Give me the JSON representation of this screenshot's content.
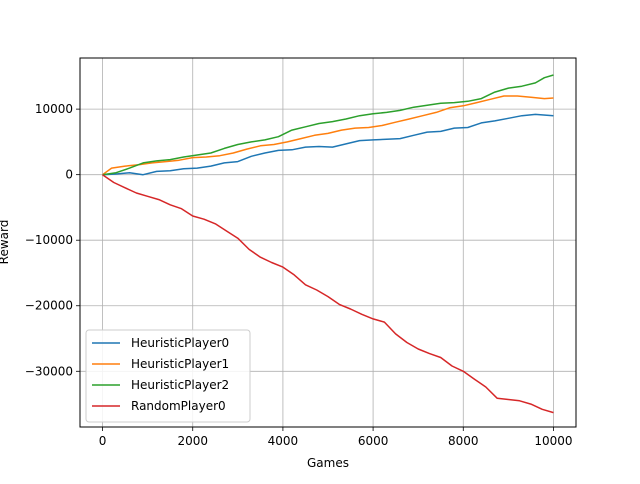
{
  "chart_data": {
    "type": "line",
    "title": "",
    "xlabel": "Games",
    "ylabel": "Reward",
    "xlim": [
      -500,
      10500
    ],
    "ylim": [
      -38500,
      17800
    ],
    "xticks": [
      0,
      2000,
      4000,
      6000,
      8000,
      10000
    ],
    "xtick_labels": [
      "0",
      "2000",
      "4000",
      "6000",
      "8000",
      "10000"
    ],
    "yticks": [
      -30000,
      -20000,
      -10000,
      0,
      10000
    ],
    "ytick_labels": [
      "−30000",
      "−20000",
      "−10000",
      "0",
      "10000"
    ],
    "grid": true,
    "legend_position": "lower-left",
    "series": [
      {
        "name": "HeuristicPlayer0",
        "color": "#1f77b4",
        "x": [
          0,
          300,
          600,
          900,
          1200,
          1500,
          1800,
          2100,
          2400,
          2700,
          3000,
          3300,
          3600,
          3900,
          4200,
          4500,
          4800,
          5100,
          5400,
          5700,
          6000,
          6300,
          6600,
          6900,
          7200,
          7500,
          7800,
          8100,
          8400,
          8700,
          9000,
          9300,
          9600,
          10000
        ],
        "values": [
          0,
          100,
          300,
          0,
          500,
          600,
          900,
          1000,
          1300,
          1800,
          2000,
          2800,
          3300,
          3700,
          3800,
          4200,
          4300,
          4200,
          4700,
          5200,
          5300,
          5400,
          5500,
          6000,
          6500,
          6600,
          7100,
          7200,
          7900,
          8200,
          8600,
          9000,
          9200,
          9000
        ]
      },
      {
        "name": "HeuristicPlayer1",
        "color": "#ff7f0e",
        "x": [
          0,
          200,
          500,
          800,
          1100,
          1400,
          1700,
          2000,
          2300,
          2600,
          2900,
          3200,
          3500,
          3800,
          4100,
          4400,
          4700,
          5000,
          5300,
          5600,
          5900,
          6200,
          6500,
          6800,
          7100,
          7400,
          7700,
          8000,
          8300,
          8600,
          8900,
          9200,
          9500,
          9800,
          10000
        ],
        "values": [
          0,
          1000,
          1300,
          1500,
          1800,
          2000,
          2200,
          2600,
          2700,
          2900,
          3300,
          3900,
          4400,
          4600,
          5000,
          5500,
          6000,
          6300,
          6800,
          7100,
          7200,
          7500,
          8000,
          8500,
          9000,
          9500,
          10200,
          10500,
          11000,
          11500,
          12000,
          12000,
          11800,
          11600,
          11700
        ]
      },
      {
        "name": "HeuristicPlayer2",
        "color": "#2ca02c",
        "x": [
          0,
          300,
          600,
          900,
          1200,
          1500,
          1800,
          2100,
          2400,
          2700,
          3000,
          3300,
          3600,
          3900,
          4200,
          4500,
          4800,
          5100,
          5400,
          5700,
          6000,
          6300,
          6600,
          6900,
          7200,
          7500,
          7800,
          8100,
          8400,
          8700,
          9000,
          9300,
          9600,
          9800,
          10000
        ],
        "values": [
          0,
          300,
          1000,
          1800,
          2100,
          2300,
          2700,
          3000,
          3300,
          4000,
          4600,
          5000,
          5300,
          5800,
          6800,
          7300,
          7800,
          8100,
          8500,
          9000,
          9300,
          9500,
          9800,
          10300,
          10600,
          10900,
          11000,
          11200,
          11600,
          12600,
          13200,
          13500,
          14000,
          14800,
          15200
        ]
      },
      {
        "name": "RandomPlayer0",
        "color": "#d62728",
        "x": [
          0,
          250,
          500,
          750,
          1000,
          1250,
          1500,
          1750,
          2000,
          2250,
          2500,
          2750,
          3000,
          3250,
          3500,
          3750,
          4000,
          4250,
          4500,
          4750,
          5000,
          5250,
          5500,
          5750,
          6000,
          6250,
          6500,
          6750,
          7000,
          7250,
          7500,
          7750,
          8000,
          8250,
          8500,
          8750,
          9000,
          9250,
          9500,
          9750,
          10000
        ],
        "values": [
          0,
          -1200,
          -2000,
          -2800,
          -3300,
          -3800,
          -4600,
          -5200,
          -6300,
          -6800,
          -7500,
          -8600,
          -9700,
          -11400,
          -12600,
          -13400,
          -14100,
          -15300,
          -16800,
          -17600,
          -18600,
          -19800,
          -20500,
          -21300,
          -22000,
          -22500,
          -24300,
          -25600,
          -26600,
          -27300,
          -27900,
          -29200,
          -30000,
          -31200,
          -32400,
          -34100,
          -34300,
          -34500,
          -35000,
          -35800,
          -36300
        ]
      }
    ]
  }
}
